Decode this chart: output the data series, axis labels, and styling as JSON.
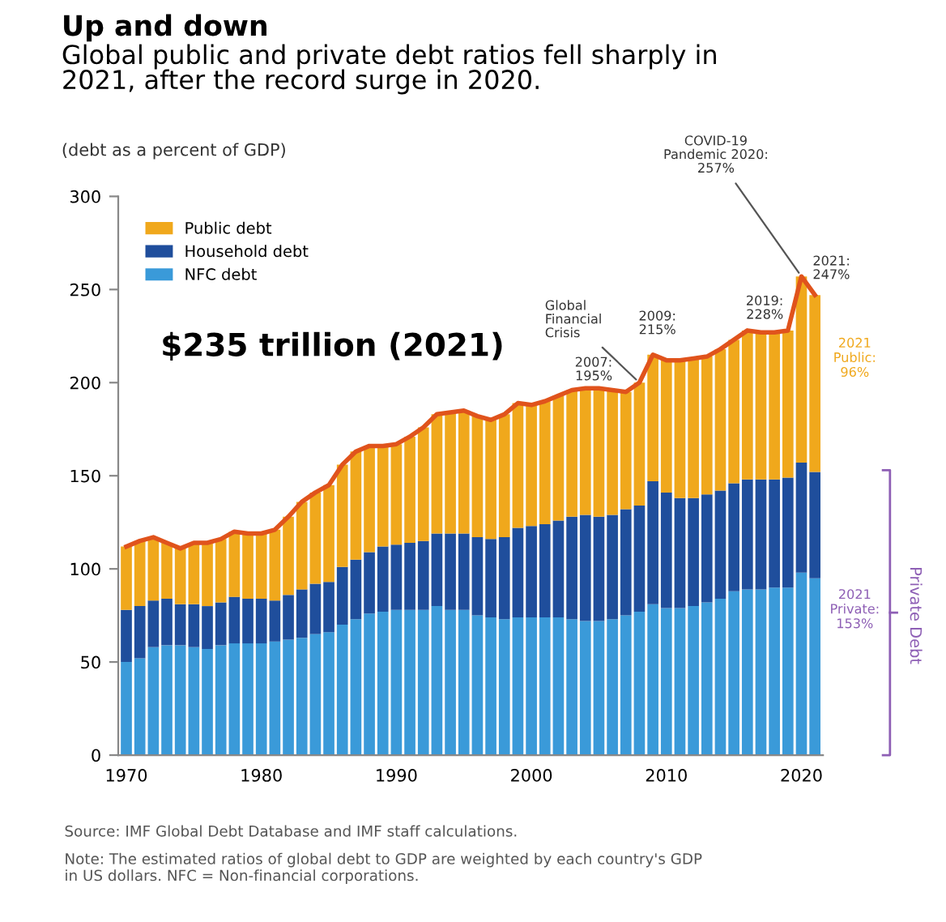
{
  "chart_data": {
    "type": "bar",
    "stacked": true,
    "title": "Up and down",
    "subtitle": "Global public and private debt ratios fell sharply in\n2021, after the record surge in 2020.",
    "ylabel": "(debt as a percent of GDP)",
    "x": [
      1970,
      1971,
      1972,
      1973,
      1974,
      1975,
      1976,
      1977,
      1978,
      1979,
      1980,
      1981,
      1982,
      1983,
      1984,
      1985,
      1986,
      1987,
      1988,
      1989,
      1990,
      1991,
      1992,
      1993,
      1994,
      1995,
      1996,
      1997,
      1998,
      1999,
      2000,
      2001,
      2002,
      2003,
      2004,
      2005,
      2006,
      2007,
      2008,
      2009,
      2010,
      2011,
      2012,
      2013,
      2014,
      2015,
      2016,
      2017,
      2018,
      2019,
      2020,
      2021
    ],
    "series": [
      {
        "name": "NFC debt",
        "color": "#3a9ad9",
        "values": [
          50,
          52,
          58,
          59,
          59,
          58,
          57,
          59,
          60,
          60,
          60,
          61,
          62,
          63,
          65,
          66,
          70,
          73,
          76,
          77,
          78,
          78,
          78,
          80,
          78,
          78,
          75,
          74,
          73,
          74,
          74,
          74,
          74,
          73,
          72,
          72,
          73,
          75,
          77,
          81,
          79,
          79,
          80,
          82,
          84,
          88,
          89,
          89,
          90,
          90,
          98,
          95
        ]
      },
      {
        "name": "Household debt",
        "color": "#1f4e9c",
        "values": [
          28,
          28,
          25,
          25,
          22,
          23,
          23,
          23,
          25,
          24,
          24,
          22,
          24,
          26,
          27,
          27,
          31,
          32,
          33,
          35,
          35,
          36,
          37,
          39,
          41,
          41,
          42,
          42,
          44,
          48,
          49,
          50,
          52,
          55,
          57,
          56,
          56,
          57,
          57,
          66,
          62,
          59,
          58,
          58,
          58,
          58,
          59,
          59,
          58,
          59,
          59,
          57
        ]
      },
      {
        "name": "Public debt",
        "color": "#f0a81c",
        "values": [
          34,
          35,
          34,
          30,
          30,
          33,
          34,
          34,
          35,
          35,
          35,
          38,
          42,
          47,
          49,
          52,
          55,
          58,
          57,
          54,
          54,
          57,
          61,
          64,
          65,
          66,
          65,
          64,
          66,
          67,
          65,
          66,
          67,
          68,
          68,
          69,
          67,
          63,
          66,
          68,
          71,
          74,
          75,
          74,
          76,
          77,
          80,
          79,
          79,
          79,
          100,
          95
        ]
      },
      {
        "type": "line",
        "color": "#e0531c",
        "values": [
          112,
          115,
          117,
          114,
          111,
          114,
          114,
          116,
          120,
          119,
          119,
          121,
          128,
          136,
          141,
          145,
          156,
          163,
          166,
          166,
          167,
          171,
          176,
          183,
          184,
          185,
          182,
          180,
          183,
          189,
          188,
          190,
          193,
          196,
          197,
          197,
          196,
          195,
          200,
          215,
          212,
          212,
          213,
          214,
          218,
          223,
          228,
          227,
          227,
          228,
          257,
          247
        ]
      }
    ],
    "xlim": [
      1969.4,
      2021.6
    ],
    "xticks": [
      1970,
      1980,
      1990,
      2000,
      2010,
      2020
    ],
    "ylim": [
      0,
      300
    ],
    "yticks": [
      0,
      50,
      100,
      150,
      200,
      250,
      300
    ],
    "grid": false,
    "legend": "top left",
    "annotations": [
      "$235 trillion (2021)",
      {
        "text": "2007:\n195%",
        "x": 2007,
        "y": 195
      },
      {
        "text": "Global\nFinancial\nCrisis",
        "x": 2008,
        "y": 200
      },
      {
        "text": "2009:\n215%",
        "x": 2009,
        "y": 215
      },
      {
        "text": "2019:\n228%",
        "x": 2019,
        "y": 228
      },
      {
        "text": "COVID-19\nPandemic 2020:\n257%",
        "x": 2020,
        "y": 257
      },
      {
        "text": "2021:\n247%",
        "x": 2021,
        "y": 247
      },
      "2021\nPublic:\n96%",
      "2021\nPrivate:\n153%",
      "Private Debt",
      "Source: IMF Global Debt Database and IMF staff calculations.",
      "Note: The estimated ratios of global debt to GDP are weighted by each country's GDP\nin US dollars. NFC = Non-financial corporations."
    ]
  }
}
